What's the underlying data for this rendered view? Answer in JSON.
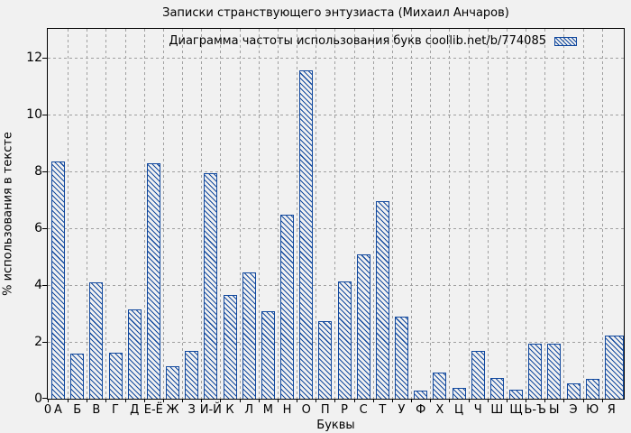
{
  "title": "Записки странствующего энтузиаста (Михаил Анчаров)",
  "legend": {
    "label": "Диаграмма частоты использования букв coollib.net/b/774085"
  },
  "axes": {
    "xlabel": "Буквы",
    "ylabel": "% использования в тексте",
    "x_origin_label": "0"
  },
  "colors": {
    "bar": "#12499e",
    "grid": "#a0a0a0",
    "axis": "#000000",
    "background": "#f1f1f1",
    "text": "#000000"
  },
  "chart_data": {
    "type": "bar",
    "title": "Записки странствующего энтузиаста (Михаил Анчаров)",
    "legend_entry": "Диаграмма частоты использования букв coollib.net/b/774085",
    "legend_position": "top-right-inside",
    "xlabel": "Буквы",
    "ylabel": "% использования в тексте",
    "grid": true,
    "bar_fill": "diagonal-hatch",
    "categories": [
      "А",
      "Б",
      "В",
      "Г",
      "Д",
      "Е-Ё",
      "Ж",
      "З",
      "И-Й",
      "К",
      "Л",
      "М",
      "Н",
      "О",
      "П",
      "Р",
      "С",
      "Т",
      "У",
      "Ф",
      "Х",
      "Ц",
      "Ч",
      "Ш",
      "Щ",
      "Ь-Ъ",
      "Ы",
      "Э",
      "Ю",
      "Я"
    ],
    "values": [
      8.3,
      1.55,
      4.05,
      1.6,
      3.1,
      8.25,
      1.1,
      1.65,
      7.9,
      3.6,
      4.4,
      3.05,
      6.45,
      11.5,
      2.7,
      4.1,
      5.05,
      6.9,
      2.85,
      0.25,
      0.9,
      0.35,
      1.65,
      0.7,
      0.3,
      1.9,
      1.9,
      0.5,
      0.65,
      2.2
    ],
    "yticks": [
      0,
      2,
      4,
      6,
      8,
      10,
      12
    ],
    "ylim": [
      0,
      13
    ],
    "x_origin_label": "0"
  }
}
